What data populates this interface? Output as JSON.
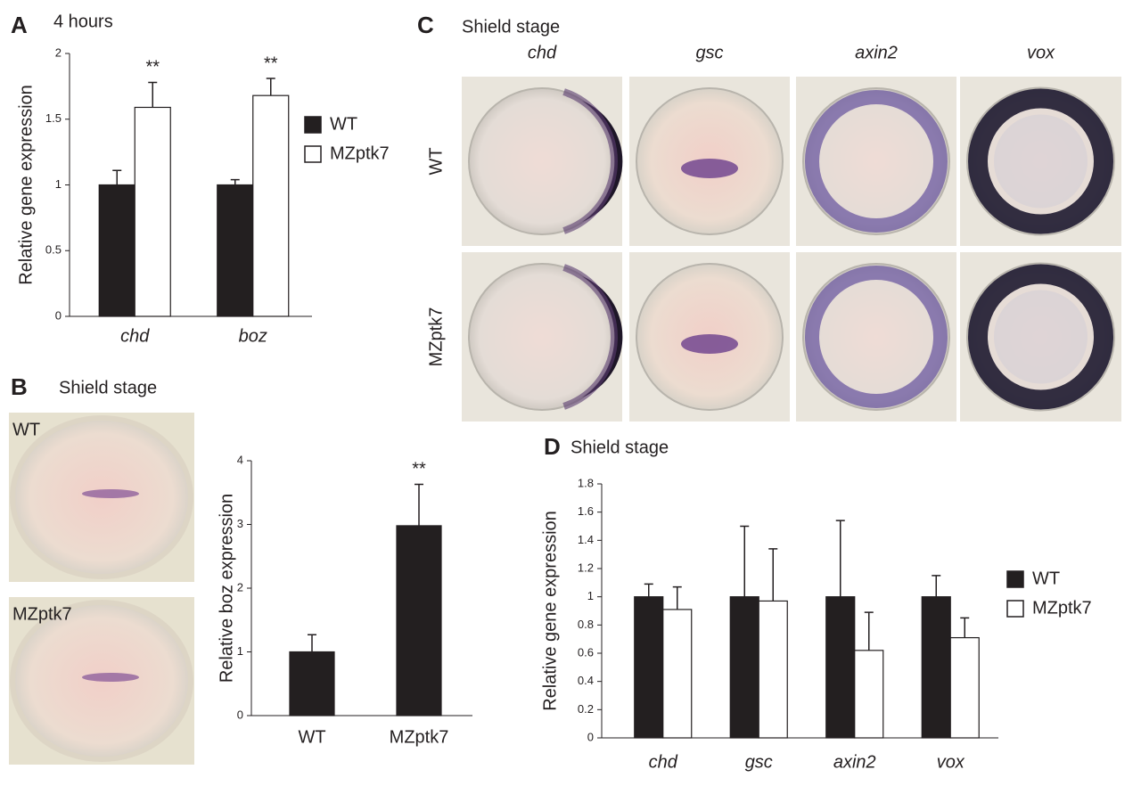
{
  "chart_data": [
    {
      "type": "bar",
      "title": "4 hours",
      "y_label": "Relative gene expression",
      "categories": [
        "chd",
        "boz"
      ],
      "series": [
        {
          "name": "WT",
          "color": "#231f20",
          "values": [
            1,
            1
          ],
          "errors": [
            0.11,
            0.04
          ]
        },
        {
          "name": "MZptk7",
          "color": "#ffffff",
          "values": [
            1.59,
            1.68
          ],
          "errors": [
            0.19,
            0.13
          ],
          "annotations": [
            "**",
            "**"
          ]
        }
      ],
      "ylim": [
        0,
        2
      ],
      "yticks": [
        0,
        0.5,
        1,
        1.5,
        2
      ],
      "legend": "right"
    },
    {
      "type": "bar",
      "title": "Shield stage",
      "y_label": "Relative boz expression",
      "categories": [
        "WT",
        "MZptk7"
      ],
      "series": [
        {
          "color": "#231f20",
          "values": [
            1,
            2.98
          ],
          "errors": [
            0.27,
            0.65
          ],
          "annotations": [
            null,
            "**"
          ]
        }
      ],
      "ylim": [
        0,
        4
      ],
      "yticks": [
        0,
        1,
        2,
        3,
        4
      ]
    },
    {
      "type": "bar",
      "title": "Shield stage",
      "y_label": "Relative gene expression",
      "categories": [
        "chd",
        "gsc",
        "axin2",
        "vox"
      ],
      "series": [
        {
          "name": "WT",
          "color": "#231f20",
          "values": [
            1,
            1,
            1,
            1
          ],
          "errors": [
            0.09,
            0.5,
            0.54,
            0.15
          ]
        },
        {
          "name": "MZptk7",
          "color": "#ffffff",
          "values": [
            0.91,
            0.97,
            0.62,
            0.71
          ],
          "errors": [
            0.16,
            0.37,
            0.27,
            0.14
          ]
        }
      ],
      "ylim": [
        0,
        1.8
      ],
      "yticks": [
        0,
        0.2,
        0.4,
        0.6,
        0.8,
        1,
        1.2,
        1.4,
        1.6,
        1.8
      ],
      "legend": "right"
    }
  ],
  "panel_letters": [
    "A",
    "B",
    "C",
    "D"
  ],
  "panel_b_images": [
    "WT",
    "MZptk7"
  ],
  "panel_c": {
    "title": "Shield stage",
    "columns": [
      "chd",
      "gsc",
      "axin2",
      "vox"
    ],
    "rows": [
      "WT",
      "MZptk7"
    ]
  }
}
